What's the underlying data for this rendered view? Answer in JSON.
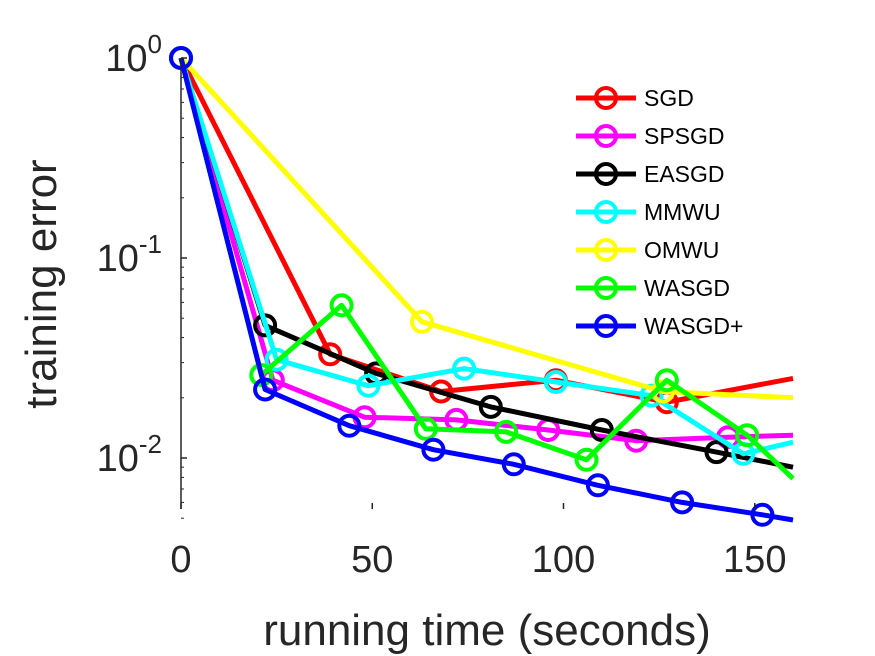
{
  "chart_data": {
    "type": "line",
    "title": "",
    "xlabel": "running time (seconds)",
    "ylabel": "training error",
    "xlim": [
      0,
      160
    ],
    "ylim": [
      0.005,
      1
    ],
    "yscale": "log",
    "grid": false,
    "legend_position": "top-right",
    "x_ticks": [
      {
        "value": 0,
        "label": "0"
      },
      {
        "value": 50,
        "label": "50"
      },
      {
        "value": 100,
        "label": "100"
      },
      {
        "value": 150,
        "label": "150"
      }
    ],
    "y_ticks": [
      {
        "value": 1,
        "base": "10",
        "exp": "0"
      },
      {
        "value": 0.1,
        "base": "10",
        "exp": "-1"
      },
      {
        "value": 0.01,
        "base": "10",
        "exp": "-2"
      }
    ],
    "series": [
      {
        "name": "SGD",
        "color": "#ff0000",
        "x": [
          0,
          39,
          68,
          98,
          127,
          160
        ],
        "y": [
          1.0,
          0.033,
          0.0215,
          0.0245,
          0.019,
          0.025
        ],
        "markers": [
          0,
          1,
          2,
          3,
          4
        ]
      },
      {
        "name": "SPSGD",
        "color": "#ff00ff",
        "x": [
          0,
          24,
          48,
          72,
          96,
          119,
          143,
          160
        ],
        "y": [
          1.0,
          0.0245,
          0.016,
          0.0155,
          0.0138,
          0.0122,
          0.0127,
          0.013
        ],
        "markers": [
          0,
          1,
          2,
          3,
          4,
          5,
          6
        ]
      },
      {
        "name": "EASGD",
        "color": "#000000",
        "x": [
          0,
          22,
          51,
          81,
          110,
          140,
          160
        ],
        "y": [
          1.0,
          0.046,
          0.0265,
          0.018,
          0.0138,
          0.0107,
          0.009
        ],
        "markers": [
          0,
          1,
          2,
          3,
          4,
          5
        ]
      },
      {
        "name": "MMWU",
        "color": "#00ffff",
        "x": [
          0,
          25,
          49,
          74,
          98,
          123,
          147,
          160
        ],
        "y": [
          1.0,
          0.031,
          0.023,
          0.028,
          0.024,
          0.0205,
          0.0105,
          0.012
        ],
        "markers": [
          0,
          1,
          2,
          3,
          4,
          5,
          6
        ]
      },
      {
        "name": "OMWU",
        "color": "#ffff00",
        "x": [
          0,
          63,
          126,
          160
        ],
        "y": [
          1.0,
          0.048,
          0.0215,
          0.02
        ],
        "markers": [
          0,
          1,
          2
        ]
      },
      {
        "name": "WASGD",
        "color": "#00ff00",
        "x": [
          0,
          21,
          42,
          64,
          85,
          106,
          127,
          148,
          160
        ],
        "y": [
          1.0,
          0.026,
          0.058,
          0.014,
          0.0135,
          0.0098,
          0.0245,
          0.013,
          0.0079
        ],
        "markers": [
          0,
          1,
          2,
          3,
          4,
          5,
          6,
          7
        ]
      },
      {
        "name": "WASGD+",
        "color": "#0000ff",
        "x": [
          0,
          22,
          44,
          66,
          87,
          109,
          131,
          152,
          160
        ],
        "y": [
          1.0,
          0.022,
          0.0145,
          0.011,
          0.0093,
          0.0073,
          0.006,
          0.0052,
          0.0049
        ],
        "markers": [
          0,
          1,
          2,
          3,
          4,
          5,
          6,
          7
        ]
      }
    ]
  }
}
